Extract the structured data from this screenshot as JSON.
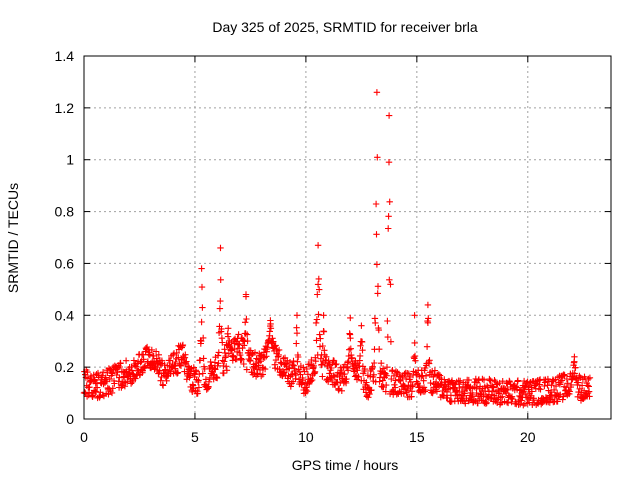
{
  "chart_data": {
    "type": "scatter",
    "title": "Day 325 of 2025, SRMTID for receiver brla",
    "xlabel": "GPS time / hours",
    "ylabel": "SRMTID / TECUs",
    "xlim": [
      0,
      23.75
    ],
    "ylim": [
      0,
      1.4
    ],
    "xticks": [
      0,
      5,
      10,
      15,
      20
    ],
    "yticks": [
      0,
      0.2,
      0.4,
      0.6,
      0.8,
      1,
      1.2,
      1.4
    ],
    "grid": true,
    "marker": "plus",
    "color": "#ff0000",
    "series": [
      {
        "name": "SRMTID",
        "profile": {
          "x": [
            0,
            0.3,
            0.6,
            1,
            1.5,
            2,
            2.5,
            2.9,
            3.2,
            3.6,
            4,
            4.4,
            4.8,
            5.1,
            5.5,
            6,
            6.5,
            7,
            7.5,
            8,
            8.4,
            8.8,
            9.2,
            9.6,
            10,
            10.4,
            10.8,
            11.2,
            11.6,
            12,
            12.4,
            12.8,
            13.2,
            13.6,
            14,
            14.5,
            15,
            15.5,
            16,
            17,
            18,
            19,
            20,
            21,
            22,
            22.8
          ],
          "y": [
            0.15,
            0.12,
            0.13,
            0.14,
            0.16,
            0.18,
            0.2,
            0.25,
            0.22,
            0.17,
            0.2,
            0.25,
            0.16,
            0.14,
            0.16,
            0.2,
            0.24,
            0.28,
            0.22,
            0.2,
            0.27,
            0.22,
            0.17,
            0.18,
            0.14,
            0.22,
            0.2,
            0.18,
            0.15,
            0.2,
            0.2,
            0.12,
            0.2,
            0.15,
            0.14,
            0.13,
            0.14,
            0.15,
            0.13,
            0.1,
            0.11,
            0.1,
            0.1,
            0.11,
            0.13,
            0.11
          ]
        },
        "spikes": [
          {
            "t": 5.3,
            "w": 0.12,
            "peak": 0.58
          },
          {
            "t": 6.15,
            "w": 0.1,
            "peak": 0.66
          },
          {
            "t": 6.5,
            "w": 0.15,
            "peak": 0.35
          },
          {
            "t": 7.3,
            "w": 0.1,
            "peak": 0.48
          },
          {
            "t": 8.4,
            "w": 0.2,
            "peak": 0.38
          },
          {
            "t": 9.6,
            "w": 0.08,
            "peak": 0.4
          },
          {
            "t": 10.55,
            "w": 0.14,
            "peak": 0.67
          },
          {
            "t": 10.8,
            "w": 0.08,
            "peak": 0.4
          },
          {
            "t": 12,
            "w": 0.1,
            "peak": 0.39
          },
          {
            "t": 12.5,
            "w": 0.1,
            "peak": 0.36
          },
          {
            "t": 13.2,
            "w": 0.12,
            "peak": 1.26
          },
          {
            "t": 13.75,
            "w": 0.1,
            "peak": 1.17
          },
          {
            "t": 14.9,
            "w": 0.08,
            "peak": 0.4
          },
          {
            "t": 15.5,
            "w": 0.1,
            "peak": 0.44
          },
          {
            "t": 22.1,
            "w": 0.15,
            "peak": 0.24
          }
        ],
        "noise": 0.05,
        "samples": 1300
      }
    ]
  }
}
